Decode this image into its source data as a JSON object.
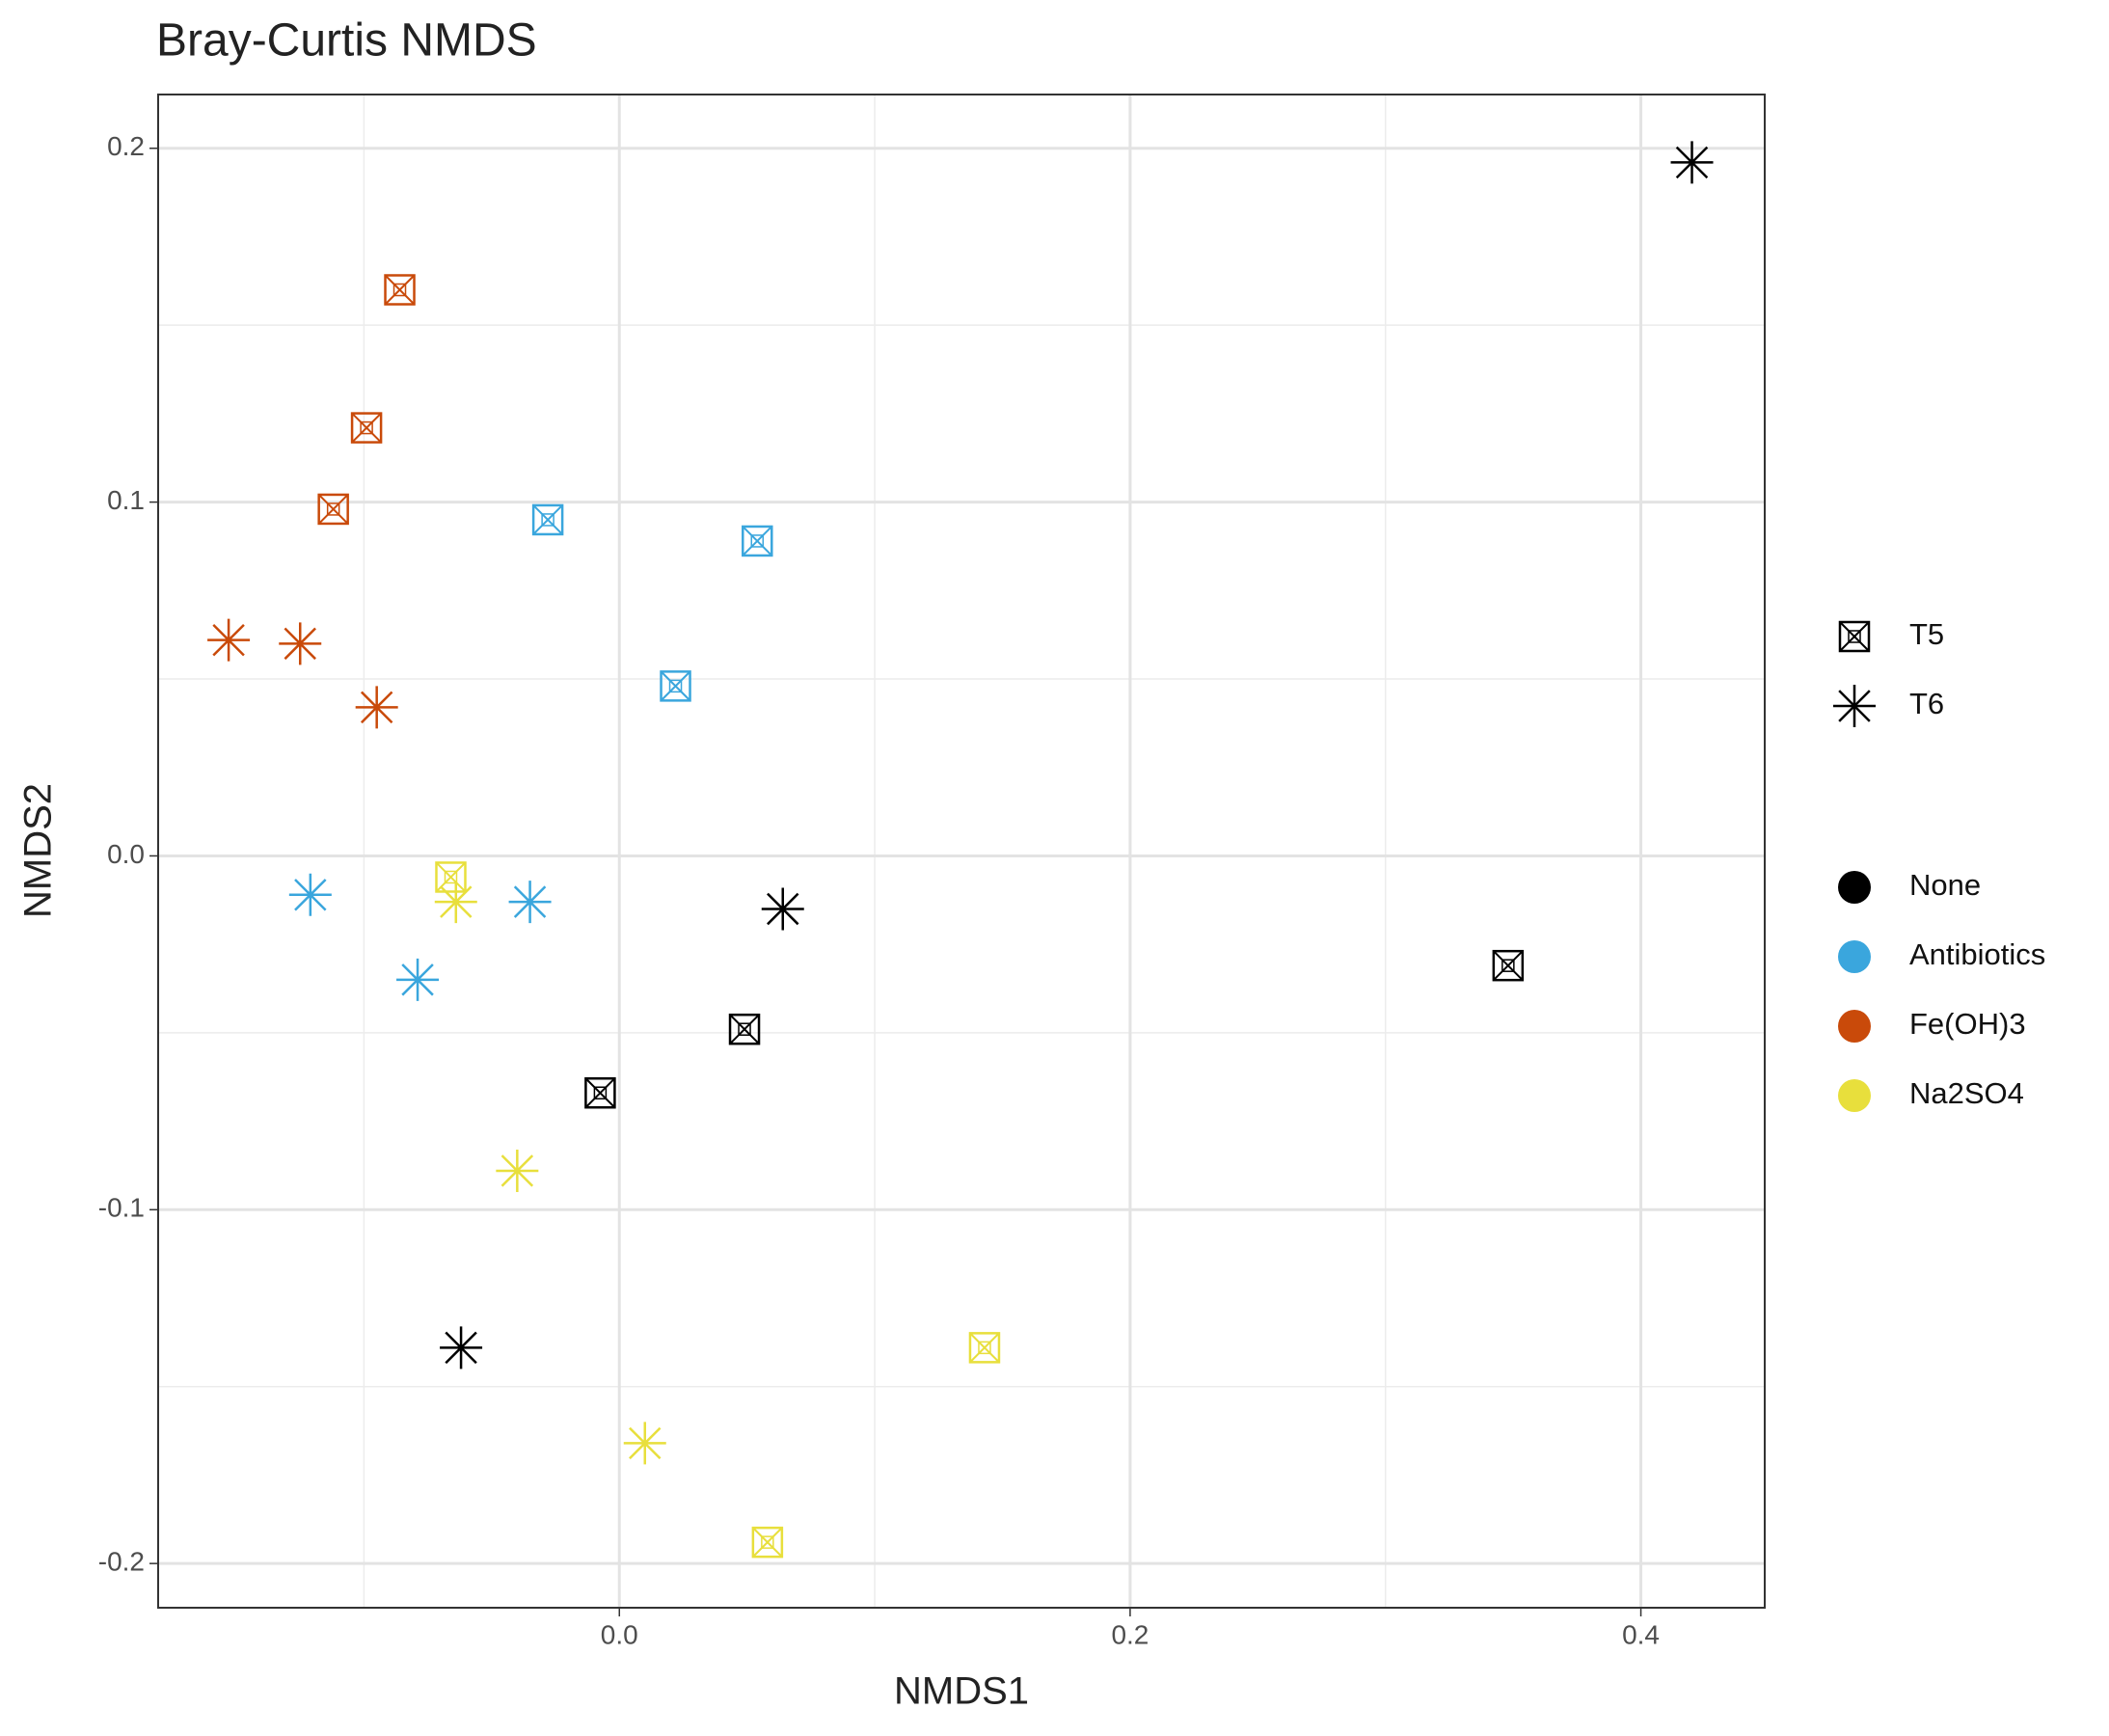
{
  "chart_data": {
    "type": "scatter",
    "title": "Bray-Curtis NMDS",
    "x_label": "NMDS1",
    "y_label": "NMDS2",
    "xlim": [
      -0.1806,
      0.4485
    ],
    "ylim": [
      -0.2125,
      0.2152
    ],
    "xticks": [
      {
        "value": 0,
        "label": "0.0"
      },
      0.2,
      0.4
    ],
    "yticks": [
      -0.2,
      -0.1,
      {
        "value": 0,
        "label": "0.0"
      },
      0.1,
      0.2
    ],
    "x_minor_grid": [
      -0.1,
      0.1,
      0.3
    ],
    "y_minor_grid": [
      -0.15,
      -0.05,
      0.05,
      0.15
    ],
    "grid": true,
    "shapes": [
      {
        "name": "T5",
        "marker": "square-x"
      },
      {
        "name": "T6",
        "marker": "asterisk"
      }
    ],
    "series": [
      {
        "name": "None",
        "color": "#000000",
        "points_by_shape": [
          {
            "x": [
              0.348,
              0.049,
              -0.0075
            ],
            "y": [
              -0.031,
              -0.049,
              -0.067
            ]
          },
          {
            "x": [
              0.42,
              0.064,
              -0.062
            ],
            "y": [
              0.196,
              -0.015,
              -0.139
            ]
          }
        ]
      },
      {
        "name": "Antibiotics",
        "color": "#3aa6dd",
        "points_by_shape": [
          {
            "x": [
              -0.028,
              0.054,
              0.022
            ],
            "y": [
              0.095,
              0.089,
              0.048
            ]
          },
          {
            "x": [
              -0.121,
              -0.035,
              -0.079
            ],
            "y": [
              -0.011,
              -0.013,
              -0.035
            ]
          }
        ]
      },
      {
        "name": "Fe(OH)3",
        "color": "#c94a0a",
        "points_by_shape": [
          {
            "x": [
              -0.086,
              -0.099,
              -0.112
            ],
            "y": [
              0.16,
              0.121,
              0.098
            ]
          },
          {
            "x": [
              -0.153,
              -0.125,
              -0.095
            ],
            "y": [
              0.061,
              0.06,
              0.042
            ]
          }
        ]
      },
      {
        "name": "Na2SO4",
        "color": "#e8df3c",
        "points_by_shape": [
          {
            "x": [
              -0.066,
              0.143,
              0.058
            ],
            "y": [
              -0.006,
              -0.139,
              -0.194
            ]
          },
          {
            "x": [
              -0.064,
              -0.04,
              0.01
            ],
            "y": [
              -0.013,
              -0.089,
              -0.166
            ]
          }
        ]
      }
    ]
  }
}
